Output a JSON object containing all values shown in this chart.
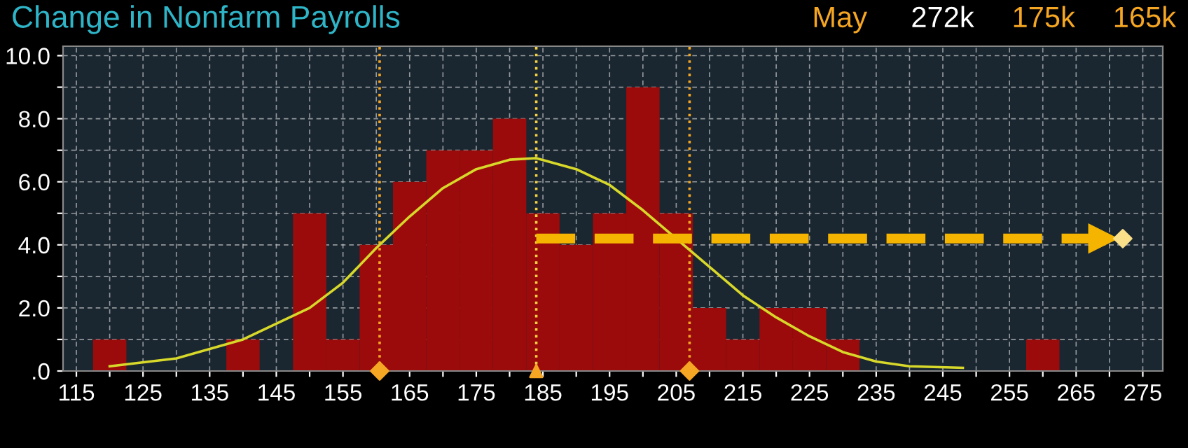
{
  "chart_data": {
    "type": "histogram",
    "title": "Change in Nonfarm Payrolls",
    "annotations": [
      "May",
      "272k",
      "175k",
      "165k"
    ],
    "bins": [
      117.5,
      122.5,
      127.5,
      132.5,
      137.5,
      142.5,
      147.5,
      152.5,
      157.5,
      162.5,
      167.5,
      172.5,
      177.5,
      182.5,
      187.5,
      192.5,
      197.5,
      202.5,
      207.5,
      212.5,
      217.5,
      222.5,
      227.5,
      232.5,
      237.5,
      242.5,
      247.5,
      252.5,
      257.5,
      262.5
    ],
    "values": [
      1,
      0,
      0,
      0,
      1,
      0,
      5,
      1,
      4,
      6,
      7,
      7,
      8,
      5,
      4,
      5,
      9,
      5,
      2,
      1,
      2,
      2,
      1,
      0,
      0,
      0,
      0,
      0,
      1
    ],
    "color": "#9b0b0b",
    "series": [
      {
        "type": "line",
        "color": "#d8d82a",
        "x": [
          120,
          130,
          140,
          150,
          155,
          160,
          165,
          170,
          175,
          180,
          184,
          190,
          195,
          200,
          205,
          210,
          215,
          220,
          225,
          230,
          235,
          240,
          248
        ],
        "values": [
          0.15,
          0.4,
          1.0,
          2.0,
          2.8,
          3.9,
          4.9,
          5.8,
          6.4,
          6.7,
          6.75,
          6.4,
          5.9,
          5.1,
          4.2,
          3.3,
          2.4,
          1.7,
          1.1,
          0.6,
          0.3,
          0.15,
          0.1
        ]
      },
      {
        "type": "line",
        "color": "#f5b400",
        "line_style": "dashed",
        "marker": "triangle",
        "x": [
          184,
          269
        ],
        "values": [
          4.2,
          4.2
        ]
      },
      {
        "type": "scatter",
        "color": "#fbe08a",
        "marker": "diamond",
        "x": [
          272
        ],
        "values": [
          4.2
        ]
      },
      {
        "type": "scatter",
        "color": "#f5a623",
        "marker": "diamond",
        "x": [
          160.5,
          207
        ],
        "values": [
          0,
          0
        ]
      },
      {
        "type": "scatter",
        "color": "#f5a623",
        "marker": "triangle",
        "x": [
          184
        ],
        "values": [
          0
        ]
      }
    ],
    "ref_lines": [
      {
        "axis": "x",
        "value": 160.5,
        "color": "#f5a623",
        "line_style": "dotted"
      },
      {
        "axis": "x",
        "value": 184,
        "color": "#f5d040",
        "line_style": "dotted"
      },
      {
        "axis": "x",
        "value": 207,
        "color": "#f5a623",
        "line_style": "dotted"
      }
    ],
    "xlim": [
      113,
      278
    ],
    "ylim": [
      0,
      10.3
    ],
    "xticks": [
      115,
      {
        "value": 120,
        "label": null
      },
      125,
      {
        "value": 130,
        "label": null
      },
      135,
      {
        "value": 140,
        "label": null
      },
      145,
      {
        "value": 150,
        "label": null
      },
      155,
      {
        "value": 160,
        "label": null
      },
      165,
      {
        "value": 170,
        "label": null
      },
      175,
      {
        "value": 180,
        "label": null
      },
      185,
      {
        "value": 190,
        "label": null
      },
      195,
      {
        "value": 200,
        "label": null
      },
      205,
      {
        "value": 210,
        "label": null
      },
      215,
      {
        "value": 220,
        "label": null
      },
      225,
      {
        "value": 230,
        "label": null
      },
      235,
      {
        "value": 240,
        "label": null
      },
      245,
      {
        "value": 250,
        "label": null
      },
      255,
      {
        "value": 260,
        "label": null
      },
      265,
      {
        "value": 270,
        "label": null
      },
      275
    ],
    "yticks": [
      {
        "value": 0,
        "label": ".0"
      },
      {
        "value": 1,
        "label": null
      },
      {
        "value": 2,
        "label": "2.0"
      },
      {
        "value": 3,
        "label": null
      },
      {
        "value": 4,
        "label": "4.0"
      },
      {
        "value": 5,
        "label": null
      },
      {
        "value": 6,
        "label": "6.0"
      },
      {
        "value": 7,
        "label": null
      },
      {
        "value": 8,
        "label": "8.0"
      },
      {
        "value": 9,
        "label": null
      },
      {
        "value": 10,
        "label": "10.0"
      }
    ],
    "grid": true
  }
}
